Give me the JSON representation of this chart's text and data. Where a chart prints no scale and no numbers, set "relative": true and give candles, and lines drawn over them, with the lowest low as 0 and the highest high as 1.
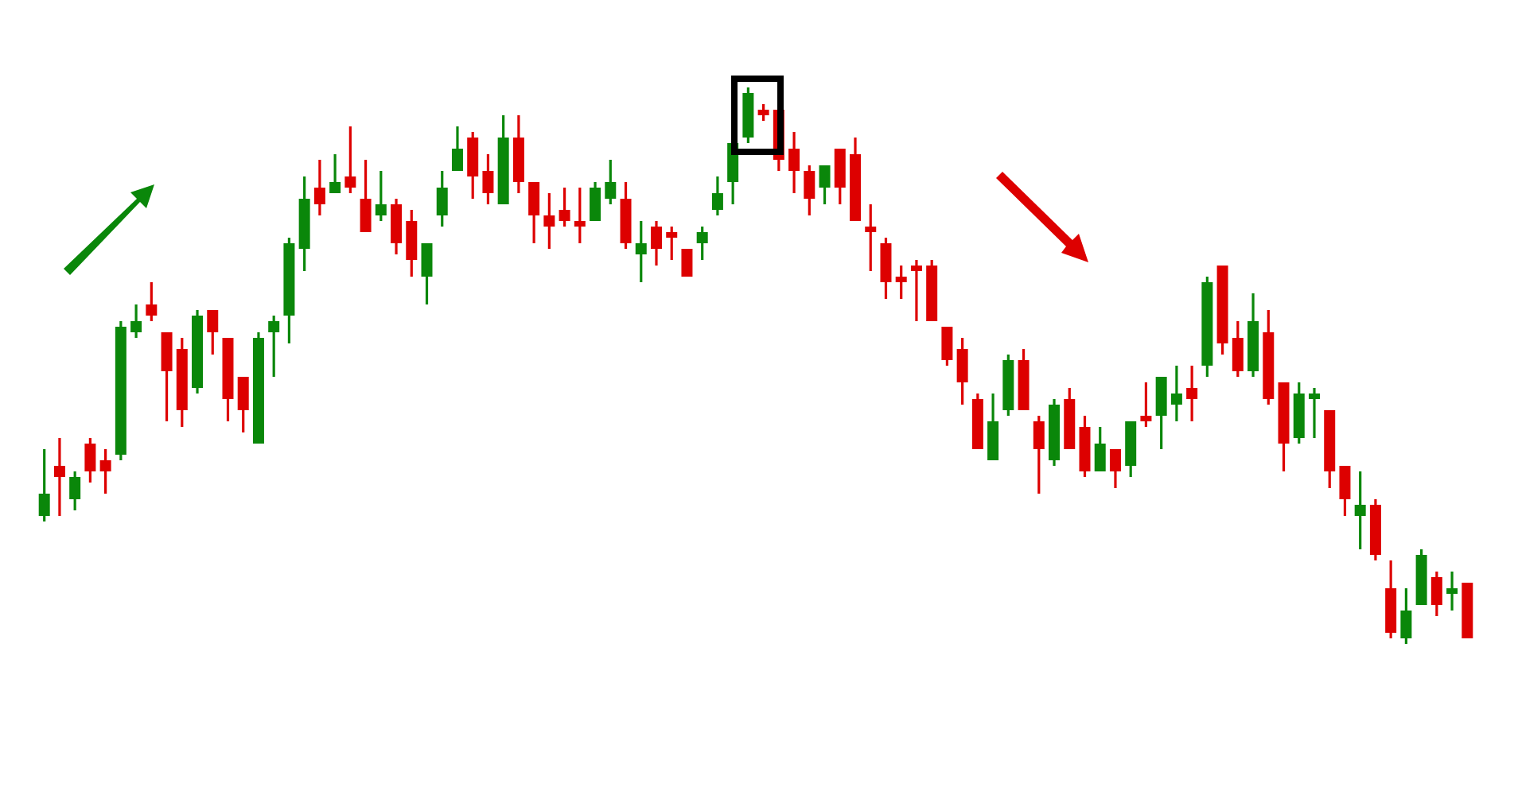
{
  "chart_data": {
    "type": "candlestick",
    "relative": true,
    "categories": [
      null,
      null,
      null,
      null,
      null,
      null,
      null,
      null,
      null,
      null,
      null,
      null,
      null,
      null,
      null,
      null,
      null,
      null,
      null,
      null,
      null,
      null,
      null,
      null,
      null,
      null,
      null,
      null,
      null,
      null,
      null,
      null,
      null,
      null,
      null,
      null,
      null,
      null,
      null,
      null,
      null,
      null,
      null,
      null,
      null,
      null,
      null,
      null,
      null,
      null,
      null,
      null,
      null,
      null,
      null,
      null,
      null,
      null,
      null,
      null,
      null,
      null,
      null,
      null,
      null,
      null,
      null,
      null,
      null,
      null,
      null,
      null,
      null,
      null,
      null,
      null,
      null,
      null,
      null,
      null,
      null,
      null,
      null,
      null,
      null,
      null,
      null,
      null,
      null,
      null,
      null,
      null,
      null,
      null
    ],
    "ohlc": [
      [
        0.23,
        0.35,
        0.22,
        0.27
      ],
      [
        0.32,
        0.37,
        0.23,
        0.3
      ],
      [
        0.26,
        0.31,
        0.24,
        0.3
      ],
      [
        0.36,
        0.37,
        0.29,
        0.31
      ],
      [
        0.33,
        0.35,
        0.27,
        0.31
      ],
      [
        0.34,
        0.58,
        0.33,
        0.57
      ],
      [
        0.56,
        0.61,
        0.55,
        0.58
      ],
      [
        0.61,
        0.65,
        0.58,
        0.59
      ],
      [
        0.56,
        0.56,
        0.4,
        0.49
      ],
      [
        0.53,
        0.55,
        0.39,
        0.42
      ],
      [
        0.46,
        0.6,
        0.45,
        0.59
      ],
      [
        0.6,
        0.6,
        0.52,
        0.56
      ],
      [
        0.55,
        0.55,
        0.4,
        0.44
      ],
      [
        0.48,
        0.48,
        0.38,
        0.42
      ],
      [
        0.36,
        0.56,
        0.36,
        0.55
      ],
      [
        0.56,
        0.59,
        0.48,
        0.58
      ],
      [
        0.59,
        0.73,
        0.54,
        0.72
      ],
      [
        0.71,
        0.84,
        0.67,
        0.8
      ],
      [
        0.82,
        0.87,
        0.77,
        0.79
      ],
      [
        0.81,
        0.88,
        0.81,
        0.83
      ],
      [
        0.84,
        0.93,
        0.81,
        0.82
      ],
      [
        0.8,
        0.87,
        0.74,
        0.74
      ],
      [
        0.77,
        0.85,
        0.76,
        0.79
      ],
      [
        0.79,
        0.8,
        0.7,
        0.72
      ],
      [
        0.76,
        0.78,
        0.66,
        0.69
      ],
      [
        0.66,
        0.72,
        0.61,
        0.72
      ],
      [
        0.77,
        0.85,
        0.75,
        0.82
      ],
      [
        0.85,
        0.93,
        0.85,
        0.89
      ],
      [
        0.91,
        0.92,
        0.8,
        0.84
      ],
      [
        0.85,
        0.88,
        0.79,
        0.81
      ],
      [
        0.79,
        0.95,
        0.79,
        0.91
      ],
      [
        0.91,
        0.95,
        0.81,
        0.83
      ],
      [
        0.83,
        0.83,
        0.72,
        0.77
      ],
      [
        0.77,
        0.81,
        0.71,
        0.75
      ],
      [
        0.78,
        0.82,
        0.75,
        0.76
      ],
      [
        0.76,
        0.82,
        0.72,
        0.75
      ],
      [
        0.76,
        0.83,
        0.76,
        0.82
      ],
      [
        0.8,
        0.87,
        0.79,
        0.83
      ],
      [
        0.8,
        0.83,
        0.71,
        0.72
      ],
      [
        0.7,
        0.76,
        0.65,
        0.72
      ],
      [
        0.75,
        0.76,
        0.68,
        0.71
      ],
      [
        0.74,
        0.75,
        0.69,
        0.73
      ],
      [
        0.71,
        0.71,
        0.66,
        0.66
      ],
      [
        0.72,
        0.75,
        0.69,
        0.74
      ],
      [
        0.78,
        0.84,
        0.77,
        0.81
      ],
      [
        0.83,
        0.9,
        0.79,
        0.9
      ],
      [
        0.91,
        1,
        0.9,
        0.99
      ],
      [
        0.96,
        0.97,
        0.94,
        0.95
      ],
      [
        0.96,
        0.96,
        0.85,
        0.87
      ],
      [
        0.89,
        0.92,
        0.81,
        0.85
      ],
      [
        0.85,
        0.86,
        0.77,
        0.8
      ],
      [
        0.82,
        0.86,
        0.79,
        0.86
      ],
      [
        0.89,
        0.89,
        0.79,
        0.82
      ],
      [
        0.88,
        0.91,
        0.76,
        0.76
      ],
      [
        0.75,
        0.79,
        0.67,
        0.74
      ],
      [
        0.72,
        0.73,
        0.62,
        0.65
      ],
      [
        0.66,
        0.68,
        0.62,
        0.65
      ],
      [
        0.68,
        0.69,
        0.58,
        0.67
      ],
      [
        0.68,
        0.69,
        0.58,
        0.58
      ],
      [
        0.57,
        0.57,
        0.5,
        0.51
      ],
      [
        0.53,
        0.55,
        0.43,
        0.47
      ],
      [
        0.44,
        0.45,
        0.35,
        0.35
      ],
      [
        0.33,
        0.45,
        0.33,
        0.4
      ],
      [
        0.42,
        0.52,
        0.41,
        0.51
      ],
      [
        0.51,
        0.53,
        0.42,
        0.42
      ],
      [
        0.4,
        0.41,
        0.27,
        0.35
      ],
      [
        0.33,
        0.44,
        0.32,
        0.43
      ],
      [
        0.44,
        0.46,
        0.35,
        0.35
      ],
      [
        0.39,
        0.41,
        0.3,
        0.31
      ],
      [
        0.31,
        0.39,
        0.31,
        0.36
      ],
      [
        0.35,
        0.35,
        0.28,
        0.31
      ],
      [
        0.32,
        0.4,
        0.3,
        0.4
      ],
      [
        0.41,
        0.47,
        0.39,
        0.4
      ],
      [
        0.41,
        0.48,
        0.35,
        0.48
      ],
      [
        0.43,
        0.5,
        0.4,
        0.45
      ],
      [
        0.46,
        0.5,
        0.4,
        0.44
      ],
      [
        0.5,
        0.66,
        0.48,
        0.65
      ],
      [
        0.68,
        0.68,
        0.52,
        0.54
      ],
      [
        0.55,
        0.58,
        0.48,
        0.49
      ],
      [
        0.49,
        0.63,
        0.48,
        0.58
      ],
      [
        0.56,
        0.6,
        0.43,
        0.44
      ],
      [
        0.47,
        0.47,
        0.31,
        0.36
      ],
      [
        0.37,
        0.47,
        0.36,
        0.45
      ],
      [
        0.44,
        0.46,
        0.37,
        0.45
      ],
      [
        0.42,
        0.42,
        0.28,
        0.31
      ],
      [
        0.32,
        0.32,
        0.23,
        0.26
      ],
      [
        0.23,
        0.31,
        0.17,
        0.25
      ],
      [
        0.25,
        0.26,
        0.15,
        0.16
      ],
      [
        0.1,
        0.15,
        0.01,
        0.02
      ],
      [
        0.01,
        0.1,
        0,
        0.06
      ],
      [
        0.07,
        0.17,
        0.07,
        0.16
      ],
      [
        0.12,
        0.13,
        0.05,
        0.07
      ],
      [
        0.09,
        0.13,
        0.06,
        0.1
      ],
      [
        0.11,
        0.11,
        0.01,
        0.01
      ]
    ],
    "colors": [
      "#0a870a",
      "#dd0000",
      "#0a870a",
      "#dd0000",
      "#dd0000",
      "#0a870a",
      "#0a870a",
      "#dd0000",
      "#dd0000",
      "#dd0000",
      "#0a870a",
      "#dd0000",
      "#dd0000",
      "#dd0000",
      "#0a870a",
      "#0a870a",
      "#0a870a",
      "#0a870a",
      "#dd0000",
      "#0a870a",
      "#dd0000",
      "#dd0000",
      "#0a870a",
      "#dd0000",
      "#dd0000",
      "#0a870a",
      "#0a870a",
      "#0a870a",
      "#dd0000",
      "#dd0000",
      "#0a870a",
      "#dd0000",
      "#dd0000",
      "#dd0000",
      "#dd0000",
      "#dd0000",
      "#0a870a",
      "#0a870a",
      "#dd0000",
      "#0a870a",
      "#dd0000",
      "#dd0000",
      "#dd0000",
      "#0a870a",
      "#0a870a",
      "#0a870a",
      "#0a870a",
      "#dd0000",
      "#dd0000",
      "#dd0000",
      "#dd0000",
      "#0a870a",
      "#dd0000",
      "#dd0000",
      "#dd0000",
      "#dd0000",
      "#dd0000",
      "#dd0000",
      "#dd0000",
      "#dd0000",
      "#dd0000",
      "#dd0000",
      "#0a870a",
      "#0a870a",
      "#dd0000",
      "#dd0000",
      "#0a870a",
      "#dd0000",
      "#dd0000",
      "#0a870a",
      "#dd0000",
      "#0a870a",
      "#dd0000",
      "#0a870a",
      "#0a870a",
      "#dd0000",
      "#0a870a",
      "#dd0000",
      "#dd0000",
      "#0a870a",
      "#dd0000",
      "#dd0000",
      "#0a870a",
      "#0a870a",
      "#dd0000",
      "#dd0000",
      "#0a870a",
      "#dd0000",
      "#dd0000",
      "#0a870a",
      "#0a870a",
      "#dd0000",
      "#0a870a",
      "#dd0000"
    ]
  }
}
